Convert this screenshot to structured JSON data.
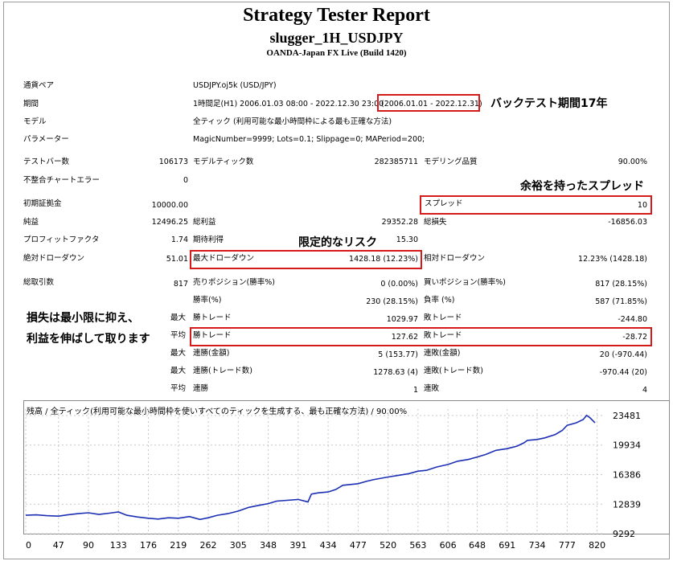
{
  "header": {
    "title": "Strategy Tester Report",
    "ea_name": "slugger_1H_USDJPY",
    "server": "OANDA-Japan FX Live (Build 1420)"
  },
  "settings": {
    "symbol_label": "通貨ペア",
    "symbol_value": "USDJPY.oj5k (USD/JPY)",
    "period_label": "期間",
    "period_value": "1時間足(H1) 2006.01.03 08:00 - 2022.12.30 23:00",
    "period_range": "(2006.01.01 - 2022.12.31)",
    "model_label": "モデル",
    "model_value": "全ティック (利用可能な最小時間枠による最も正確な方法)",
    "params_label": "パラメーター",
    "params_value": "MagicNumber=9999; Lots=0.1; Slippage=0; MAPeriod=200;"
  },
  "stats": {
    "bars_label": "テストバー数",
    "bars_value": "106173",
    "ticks_label": "モデルティック数",
    "ticks_value": "282385711",
    "quality_label": "モデリング品質",
    "quality_value": "90.00%",
    "mismatch_label": "不整合チャートエラー",
    "mismatch_value": "0",
    "deposit_label": "初期証拠金",
    "deposit_value": "10000.00",
    "spread_label": "スプレッド",
    "spread_value": "10",
    "net_label": "純益",
    "net_value": "12496.25",
    "gross_profit_label": "総利益",
    "gross_profit_value": "29352.28",
    "gross_loss_label": "総損失",
    "gross_loss_value": "-16856.03",
    "pf_label": "プロフィットファクタ",
    "pf_value": "1.74",
    "payoff_label": "期待利得",
    "payoff_value": "15.30",
    "abs_dd_label": "絶対ドローダウン",
    "abs_dd_value": "51.01",
    "max_dd_label": "最大ドローダウン",
    "max_dd_value": "1428.18 (12.23%)",
    "rel_dd_label": "相対ドローダウン",
    "rel_dd_value": "12.23% (1428.18)",
    "trades_label": "総取引数",
    "trades_value": "817",
    "short_label": "売りポジション(勝率%)",
    "short_value": "0 (0.00%)",
    "long_label": "買いポジション(勝率%)",
    "long_value": "817 (28.15%)",
    "win_label": "勝率(%)",
    "win_value": "230 (28.15%)",
    "loss_label": "負率 (%)",
    "loss_value": "587 (71.85%)",
    "largest": "最大",
    "average": "平均",
    "lg_win_label": "勝トレード",
    "lg_win_value": "1029.97",
    "lg_loss_label": "敗トレード",
    "lg_loss_value": "-244.80",
    "avg_win_label": "勝トレード",
    "avg_win_value": "127.62",
    "avg_loss_label": "敗トレード",
    "avg_loss_value": "-28.72",
    "cw_money_label": "連勝(金額)",
    "cw_money_value": "5 (153.77)",
    "cl_money_label": "連敗(金額)",
    "cl_money_value": "20 (-970.44)",
    "cw_count_label": "連勝(トレード数)",
    "cw_count_value": "1278.63 (4)",
    "cl_count_label": "連敗(トレード数)",
    "cl_count_value": "-970.44 (20)",
    "avg_cw_label": "連勝",
    "avg_cw_value": "1",
    "avg_cl_label": "連敗",
    "avg_cl_value": "4"
  },
  "annotations": {
    "period_note": "バックテスト期間17年",
    "spread_note": "余裕を持ったスプレッド",
    "risk_note": "限定的なリスク",
    "loss_note_1": "損失は最小限に抑え、",
    "loss_note_2": "利益を伸ばして取ります",
    "box_color": "#d51a1a"
  },
  "chart_data": {
    "type": "line",
    "title": "残高 / 全ティック(利用可能な最小時間枠を使いすべてのティックを生成する、最も正確な方法) / 90.00%",
    "x_ticks": [
      "0",
      "47",
      "90",
      "133",
      "176",
      "219",
      "262",
      "305",
      "348",
      "391",
      "434",
      "477",
      "520",
      "563",
      "606",
      "648",
      "691",
      "734",
      "777",
      "820"
    ],
    "y_ticks": [
      "23481",
      "19934",
      "16386",
      "12839",
      "9292"
    ],
    "xlim": [
      0,
      817
    ],
    "ylim": [
      9292,
      23481
    ],
    "line_color": "#1c2fb4",
    "series": [
      {
        "x": [
          0,
          15,
          30,
          47,
          60,
          75,
          90,
          105,
          120,
          133,
          145,
          160,
          176,
          190,
          205,
          219,
          235,
          250,
          262,
          275,
          290,
          305,
          320,
          335,
          348,
          360,
          375,
          391,
          405,
          410,
          420,
          434,
          445,
          455,
          477,
          490,
          500,
          520,
          535,
          550,
          563,
          575,
          590,
          606,
          620,
          635,
          648,
          660,
          675,
          691,
          705,
          715,
          720,
          734,
          745,
          760,
          770,
          777,
          790,
          800,
          805,
          810,
          817
        ],
        "y": [
          11500,
          11550,
          11450,
          11400,
          11550,
          11700,
          11800,
          11600,
          11750,
          11900,
          11500,
          11300,
          11150,
          11050,
          11200,
          11150,
          11350,
          11000,
          11200,
          11500,
          11700,
          12000,
          12450,
          12700,
          12900,
          13200,
          13300,
          13400,
          13100,
          14050,
          14200,
          14300,
          14600,
          15100,
          15300,
          15600,
          15800,
          16100,
          16300,
          16500,
          16800,
          16900,
          17300,
          17600,
          18000,
          18200,
          18500,
          18800,
          19300,
          19500,
          19800,
          20200,
          20500,
          20600,
          20800,
          21200,
          21700,
          22300,
          22600,
          23000,
          23500,
          23200,
          22600
        ]
      }
    ]
  }
}
